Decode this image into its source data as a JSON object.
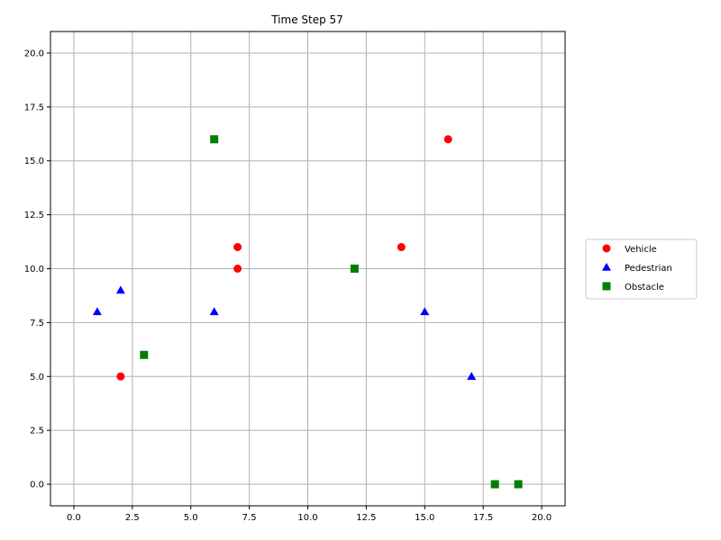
{
  "chart_data": {
    "type": "scatter",
    "title": "Time Step 57",
    "xlabel": "",
    "ylabel": "",
    "xlim": [
      -1,
      21
    ],
    "ylim": [
      -1,
      21
    ],
    "x_ticks": [
      0.0,
      2.5,
      5.0,
      7.5,
      10.0,
      12.5,
      15.0,
      17.5,
      20.0
    ],
    "x_tick_labels": [
      "0.0",
      "2.5",
      "5.0",
      "7.5",
      "10.0",
      "12.5",
      "15.0",
      "17.5",
      "20.0"
    ],
    "y_ticks": [
      0.0,
      2.5,
      5.0,
      7.5,
      10.0,
      12.5,
      15.0,
      17.5,
      20.0
    ],
    "y_tick_labels": [
      "0.0",
      "2.5",
      "5.0",
      "7.5",
      "10.0",
      "12.5",
      "15.0",
      "17.5",
      "20.0"
    ],
    "grid": true,
    "legend_position": "right, outside plot",
    "series": [
      {
        "name": "Vehicle",
        "marker": "circle",
        "color": "#ff0000",
        "points": [
          [
            2,
            5
          ],
          [
            7,
            10
          ],
          [
            7,
            11
          ],
          [
            14,
            11
          ],
          [
            16,
            16
          ]
        ]
      },
      {
        "name": "Pedestrian",
        "marker": "triangle",
        "color": "#0000ff",
        "points": [
          [
            1,
            8
          ],
          [
            2,
            9
          ],
          [
            6,
            8
          ],
          [
            15,
            8
          ],
          [
            17,
            5
          ]
        ]
      },
      {
        "name": "Obstacle",
        "marker": "square",
        "color": "#008000",
        "points": [
          [
            3,
            6
          ],
          [
            6,
            16
          ],
          [
            12,
            10
          ],
          [
            18,
            0
          ],
          [
            19,
            0
          ]
        ]
      }
    ]
  }
}
